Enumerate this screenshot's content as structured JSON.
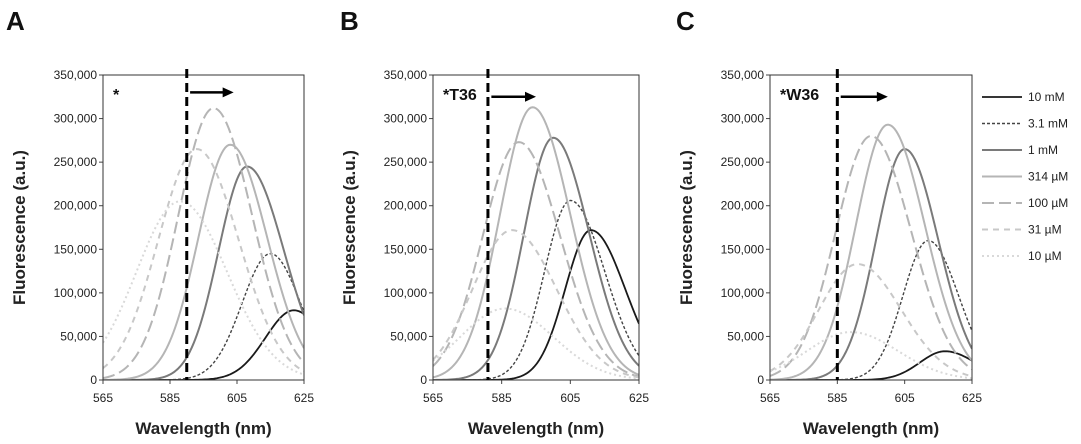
{
  "styles": {
    "10 mM": {
      "color": "#1a1a1a",
      "dash": "",
      "width": 1.8
    },
    "3.1 mM": {
      "color": "#444444",
      "dash": "3,2",
      "width": 1.4
    },
    "1 mM": {
      "color": "#7a7a7a",
      "dash": "",
      "width": 2.0
    },
    "314 µM": {
      "color": "#b5b5b5",
      "dash": "",
      "width": 2.0
    },
    "100 µM": {
      "color": "#b5b5b5",
      "dash": "12,5",
      "width": 2.0
    },
    "31 µM": {
      "color": "#c8c8c8",
      "dash": "6,5",
      "width": 2.0
    },
    "10 µM": {
      "color": "#d9d9d9",
      "dash": "2,3",
      "width": 2.0
    }
  },
  "legend": {
    "entries": [
      "10 mM",
      "3.1 mM",
      "1 mM",
      "314 µM",
      "100 µM",
      "31 µM",
      "10 µM"
    ],
    "placement": "right"
  },
  "chart_data": [
    {
      "type": "line",
      "panel_label": "A",
      "annotation": "*",
      "xlabel": "Wavelength (nm)",
      "ylabel": "Fluorescence (a.u.)",
      "xlim": [
        565,
        625
      ],
      "ylim": [
        0,
        350000
      ],
      "xticks": [
        565,
        585,
        605,
        625
      ],
      "xtick_labels": [
        "565",
        "585",
        "605",
        "625"
      ],
      "yticks": [
        0,
        50000,
        100000,
        150000,
        200000,
        250000,
        300000,
        350000
      ],
      "ytick_labels": [
        "0",
        "50,000",
        "100,000",
        "150,000",
        "200,000",
        "250,000",
        "300,000",
        "350,000"
      ],
      "marker_line_x": 590,
      "arrow": {
        "from": 591,
        "to": 604,
        "y": 330000
      },
      "series": [
        {
          "name": "10 mM",
          "peak_x": 622,
          "peak_y": 80000,
          "sigma_left": 8.5,
          "sigma_right": 9
        },
        {
          "name": "3.1 mM",
          "peak_x": 615,
          "peak_y": 145000,
          "sigma_left": 8.5,
          "sigma_right": 9
        },
        {
          "name": "1 mM",
          "peak_x": 608,
          "peak_y": 245000,
          "sigma_left": 8.5,
          "sigma_right": 11
        },
        {
          "name": "314 µM",
          "peak_x": 603,
          "peak_y": 270000,
          "sigma_left": 9.5,
          "sigma_right": 11
        },
        {
          "name": "100 µM",
          "peak_x": 598,
          "peak_y": 312000,
          "sigma_left": 10.5,
          "sigma_right": 11.5
        },
        {
          "name": "31 µM",
          "peak_x": 593,
          "peak_y": 265000,
          "sigma_left": 11.5,
          "sigma_right": 12.5
        },
        {
          "name": "10 µM",
          "peak_x": 588,
          "peak_y": 205000,
          "sigma_left": 13,
          "sigma_right": 14
        }
      ]
    },
    {
      "type": "line",
      "panel_label": "B",
      "annotation": "*T36",
      "xlabel": "Wavelength (nm)",
      "ylabel": "Fluorescence (a.u.)",
      "xlim": [
        565,
        625
      ],
      "ylim": [
        0,
        350000
      ],
      "xticks": [
        565,
        585,
        605,
        625
      ],
      "xtick_labels": [
        "565",
        "585",
        "605",
        "625"
      ],
      "yticks": [
        0,
        50000,
        100000,
        150000,
        200000,
        250000,
        300000,
        350000
      ],
      "ytick_labels": [
        "0",
        "50,000",
        "100,000",
        "150,000",
        "200,000",
        "250,000",
        "300,000",
        "350,000"
      ],
      "marker_line_x": 581,
      "arrow": {
        "from": 582,
        "to": 595,
        "y": 325000
      },
      "series": [
        {
          "name": "10 mM",
          "peak_x": 611,
          "peak_y": 172000,
          "sigma_left": 7.5,
          "sigma_right": 10
        },
        {
          "name": "3.1 mM",
          "peak_x": 605,
          "peak_y": 206000,
          "sigma_left": 7.5,
          "sigma_right": 10
        },
        {
          "name": "1 mM",
          "peak_x": 600,
          "peak_y": 278000,
          "sigma_left": 8.5,
          "sigma_right": 10.5
        },
        {
          "name": "314 µM",
          "peak_x": 594,
          "peak_y": 313000,
          "sigma_left": 9.5,
          "sigma_right": 11
        },
        {
          "name": "100 µM",
          "peak_x": 590,
          "peak_y": 273000,
          "sigma_left": 10.5,
          "sigma_right": 12
        },
        {
          "name": "31 µM",
          "peak_x": 588,
          "peak_y": 172000,
          "sigma_left": 11.5,
          "sigma_right": 13
        },
        {
          "name": "10 µM",
          "peak_x": 586,
          "peak_y": 82000,
          "sigma_left": 13,
          "sigma_right": 14
        }
      ]
    },
    {
      "type": "line",
      "panel_label": "C",
      "annotation": "*W36",
      "xlabel": "Wavelength (nm)",
      "ylabel": "Fluorescence (a.u.)",
      "xlim": [
        565,
        625
      ],
      "ylim": [
        0,
        350000
      ],
      "xticks": [
        565,
        585,
        605,
        625
      ],
      "xtick_labels": [
        "565",
        "585",
        "605",
        "625"
      ],
      "yticks": [
        0,
        50000,
        100000,
        150000,
        200000,
        250000,
        300000,
        350000
      ],
      "ytick_labels": [
        "0",
        "50,000",
        "100,000",
        "150,000",
        "200,000",
        "250,000",
        "300,000",
        "350,000"
      ],
      "marker_line_x": 585,
      "arrow": {
        "from": 586,
        "to": 600,
        "y": 325000
      },
      "series": [
        {
          "name": "10 mM",
          "peak_x": 617,
          "peak_y": 33000,
          "sigma_left": 7.5,
          "sigma_right": 9
        },
        {
          "name": "3.1 mM",
          "peak_x": 612,
          "peak_y": 160000,
          "sigma_left": 7.5,
          "sigma_right": 9
        },
        {
          "name": "1 mM",
          "peak_x": 605,
          "peak_y": 265000,
          "sigma_left": 8.5,
          "sigma_right": 10
        },
        {
          "name": "314 µM",
          "peak_x": 600,
          "peak_y": 293000,
          "sigma_left": 9.5,
          "sigma_right": 11
        },
        {
          "name": "100 µM",
          "peak_x": 595,
          "peak_y": 280000,
          "sigma_left": 10.5,
          "sigma_right": 12
        },
        {
          "name": "31 µM",
          "peak_x": 591,
          "peak_y": 133000,
          "sigma_left": 11.5,
          "sigma_right": 13
        },
        {
          "name": "10 µM",
          "peak_x": 589,
          "peak_y": 55000,
          "sigma_left": 13,
          "sigma_right": 14
        }
      ]
    }
  ]
}
